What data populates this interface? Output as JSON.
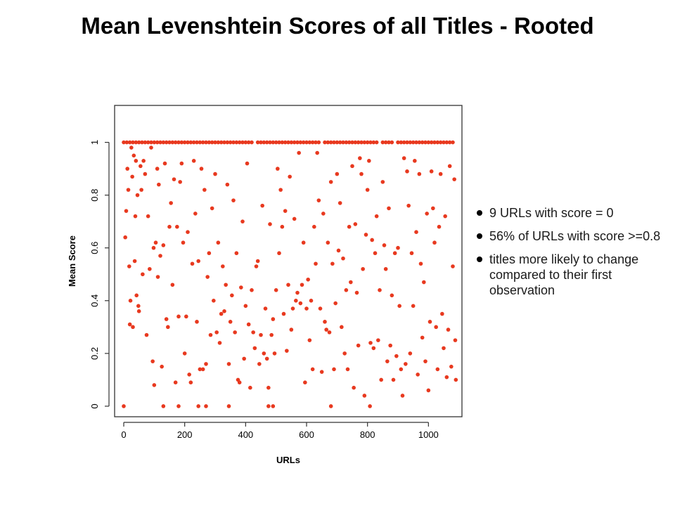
{
  "slide": {
    "title": "Mean Levenshtein Scores of all Titles - Rooted",
    "bullets": [
      "9 URLs with score = 0",
      "56% of URLs with score >=0.8",
      "titles more likely to change compared to their first observation"
    ]
  },
  "chart_data": {
    "type": "scatter",
    "xlabel": "URLs",
    "ylabel": "Mean Score",
    "xlim": [
      -30,
      1110
    ],
    "ylim": [
      -0.04,
      1.14
    ],
    "x_ticks": [
      0,
      200,
      400,
      600,
      800,
      1000
    ],
    "y_ticks": [
      0,
      0.2,
      0.4,
      0.6,
      0.8,
      1
    ],
    "x_tick_labels": [
      "0",
      "200",
      "400",
      "600",
      "800",
      "1000"
    ],
    "y_tick_labels": [
      "0",
      "0.2",
      "0.4",
      "0.6",
      "0.8",
      "1"
    ],
    "grid": false,
    "point_color": "#e8391f",
    "points_top_row": [
      0,
      10,
      20,
      30,
      40,
      50,
      60,
      70,
      80,
      90,
      100,
      110,
      120,
      130,
      140,
      150,
      160,
      170,
      180,
      190,
      200,
      210,
      220,
      230,
      240,
      250,
      260,
      270,
      280,
      290,
      300,
      310,
      320,
      330,
      340,
      350,
      360,
      370,
      380,
      390,
      400,
      410,
      420,
      440,
      450,
      460,
      470,
      480,
      490,
      500,
      510,
      520,
      530,
      540,
      550,
      560,
      570,
      580,
      590,
      600,
      610,
      620,
      630,
      640,
      660,
      670,
      680,
      690,
      700,
      710,
      720,
      730,
      740,
      750,
      760,
      770,
      780,
      790,
      800,
      810,
      820,
      830,
      850,
      860,
      870,
      880,
      900,
      910,
      920,
      930,
      940,
      950,
      960,
      970,
      980,
      990,
      1000,
      1010,
      1020,
      1030,
      1040,
      1050,
      1060,
      1070,
      1080
    ],
    "points": [
      [
        0,
        0
      ],
      [
        180,
        0
      ],
      [
        245,
        0
      ],
      [
        270,
        0
      ],
      [
        345,
        0
      ],
      [
        475,
        0
      ],
      [
        490,
        0
      ],
      [
        680,
        0
      ],
      [
        808,
        0
      ],
      [
        130,
        0
      ],
      [
        5,
        0.64
      ],
      [
        8,
        0.74
      ],
      [
        12,
        0.9
      ],
      [
        15,
        0.82
      ],
      [
        18,
        0.53
      ],
      [
        20,
        0.31
      ],
      [
        22,
        0.4
      ],
      [
        25,
        0.98
      ],
      [
        28,
        0.87
      ],
      [
        30,
        0.3
      ],
      [
        33,
        0.95
      ],
      [
        36,
        0.55
      ],
      [
        38,
        0.72
      ],
      [
        40,
        0.93
      ],
      [
        42,
        0.42
      ],
      [
        45,
        0.8
      ],
      [
        48,
        0.38
      ],
      [
        50,
        0.36
      ],
      [
        55,
        0.91
      ],
      [
        58,
        0.82
      ],
      [
        62,
        0.5
      ],
      [
        65,
        0.93
      ],
      [
        70,
        0.88
      ],
      [
        75,
        0.27
      ],
      [
        80,
        0.72
      ],
      [
        85,
        0.52
      ],
      [
        90,
        0.98
      ],
      [
        95,
        0.17
      ],
      [
        98,
        0.6
      ],
      [
        100,
        0.08
      ],
      [
        105,
        0.62
      ],
      [
        110,
        0.9
      ],
      [
        112,
        0.49
      ],
      [
        115,
        0.84
      ],
      [
        120,
        0.57
      ],
      [
        125,
        0.15
      ],
      [
        130,
        0.61
      ],
      [
        135,
        0.92
      ],
      [
        140,
        0.33
      ],
      [
        145,
        0.3
      ],
      [
        150,
        0.68
      ],
      [
        155,
        0.77
      ],
      [
        160,
        0.46
      ],
      [
        165,
        0.86
      ],
      [
        170,
        0.09
      ],
      [
        175,
        0.68
      ],
      [
        180,
        0.34
      ],
      [
        185,
        0.85
      ],
      [
        190,
        0.92
      ],
      [
        195,
        0.62
      ],
      [
        200,
        0.2
      ],
      [
        205,
        0.34
      ],
      [
        210,
        0.66
      ],
      [
        215,
        0.12
      ],
      [
        220,
        0.09
      ],
      [
        225,
        0.54
      ],
      [
        230,
        0.93
      ],
      [
        235,
        0.73
      ],
      [
        240,
        0.32
      ],
      [
        245,
        0.55
      ],
      [
        250,
        0.14
      ],
      [
        255,
        0.9
      ],
      [
        260,
        0.14
      ],
      [
        265,
        0.82
      ],
      [
        270,
        0.16
      ],
      [
        275,
        0.49
      ],
      [
        280,
        0.58
      ],
      [
        285,
        0.27
      ],
      [
        290,
        0.75
      ],
      [
        295,
        0.4
      ],
      [
        300,
        0.88
      ],
      [
        305,
        0.28
      ],
      [
        310,
        0.62
      ],
      [
        315,
        0.24
      ],
      [
        320,
        0.35
      ],
      [
        325,
        0.53
      ],
      [
        330,
        0.36
      ],
      [
        335,
        0.46
      ],
      [
        340,
        0.84
      ],
      [
        345,
        0.16
      ],
      [
        350,
        0.32
      ],
      [
        355,
        0.42
      ],
      [
        360,
        0.78
      ],
      [
        365,
        0.28
      ],
      [
        370,
        0.58
      ],
      [
        375,
        0.1
      ],
      [
        380,
        0.09
      ],
      [
        385,
        0.45
      ],
      [
        390,
        0.7
      ],
      [
        395,
        0.18
      ],
      [
        400,
        0.38
      ],
      [
        405,
        0.92
      ],
      [
        410,
        0.31
      ],
      [
        415,
        0.07
      ],
      [
        420,
        0.44
      ],
      [
        425,
        0.28
      ],
      [
        430,
        0.22
      ],
      [
        435,
        0.53
      ],
      [
        440,
        0.55
      ],
      [
        445,
        0.16
      ],
      [
        450,
        0.27
      ],
      [
        455,
        0.76
      ],
      [
        460,
        0.2
      ],
      [
        465,
        0.37
      ],
      [
        470,
        0.18
      ],
      [
        475,
        0.07
      ],
      [
        480,
        0.69
      ],
      [
        485,
        0.27
      ],
      [
        490,
        0.33
      ],
      [
        495,
        0.2
      ],
      [
        500,
        0.44
      ],
      [
        505,
        0.9
      ],
      [
        510,
        0.58
      ],
      [
        515,
        0.82
      ],
      [
        520,
        0.68
      ],
      [
        525,
        0.35
      ],
      [
        530,
        0.74
      ],
      [
        535,
        0.21
      ],
      [
        540,
        0.46
      ],
      [
        545,
        0.87
      ],
      [
        550,
        0.29
      ],
      [
        555,
        0.37
      ],
      [
        560,
        0.71
      ],
      [
        565,
        0.4
      ],
      [
        570,
        0.43
      ],
      [
        575,
        0.96
      ],
      [
        580,
        0.39
      ],
      [
        585,
        0.46
      ],
      [
        590,
        0.62
      ],
      [
        595,
        0.09
      ],
      [
        600,
        0.37
      ],
      [
        605,
        0.48
      ],
      [
        610,
        0.25
      ],
      [
        615,
        0.4
      ],
      [
        620,
        0.14
      ],
      [
        625,
        0.68
      ],
      [
        630,
        0.54
      ],
      [
        635,
        0.96
      ],
      [
        640,
        0.78
      ],
      [
        645,
        0.37
      ],
      [
        650,
        0.13
      ],
      [
        655,
        0.73
      ],
      [
        660,
        0.32
      ],
      [
        665,
        0.29
      ],
      [
        670,
        0.62
      ],
      [
        675,
        0.28
      ],
      [
        680,
        0.85
      ],
      [
        685,
        0.54
      ],
      [
        690,
        0.14
      ],
      [
        695,
        0.39
      ],
      [
        700,
        0.88
      ],
      [
        705,
        0.59
      ],
      [
        710,
        0.77
      ],
      [
        715,
        0.3
      ],
      [
        720,
        0.56
      ],
      [
        725,
        0.2
      ],
      [
        730,
        0.44
      ],
      [
        735,
        0.14
      ],
      [
        740,
        0.68
      ],
      [
        745,
        0.47
      ],
      [
        750,
        0.91
      ],
      [
        755,
        0.07
      ],
      [
        760,
        0.69
      ],
      [
        765,
        0.43
      ],
      [
        770,
        0.23
      ],
      [
        775,
        0.94
      ],
      [
        780,
        0.88
      ],
      [
        785,
        0.52
      ],
      [
        790,
        0.04
      ],
      [
        795,
        0.65
      ],
      [
        800,
        0.82
      ],
      [
        805,
        0.93
      ],
      [
        810,
        0.24
      ],
      [
        815,
        0.63
      ],
      [
        820,
        0.22
      ],
      [
        825,
        0.58
      ],
      [
        830,
        0.72
      ],
      [
        835,
        0.25
      ],
      [
        840,
        0.44
      ],
      [
        845,
        0.1
      ],
      [
        850,
        0.85
      ],
      [
        855,
        0.61
      ],
      [
        860,
        0.52
      ],
      [
        865,
        0.17
      ],
      [
        870,
        0.75
      ],
      [
        875,
        0.23
      ],
      [
        880,
        0.42
      ],
      [
        885,
        0.1
      ],
      [
        890,
        0.58
      ],
      [
        895,
        0.19
      ],
      [
        900,
        0.6
      ],
      [
        905,
        0.38
      ],
      [
        910,
        0.14
      ],
      [
        915,
        0.04
      ],
      [
        920,
        0.94
      ],
      [
        925,
        0.16
      ],
      [
        930,
        0.89
      ],
      [
        935,
        0.76
      ],
      [
        940,
        0.2
      ],
      [
        945,
        0.58
      ],
      [
        950,
        0.38
      ],
      [
        955,
        0.93
      ],
      [
        960,
        0.66
      ],
      [
        965,
        0.12
      ],
      [
        970,
        0.88
      ],
      [
        975,
        0.54
      ],
      [
        980,
        0.26
      ],
      [
        985,
        0.47
      ],
      [
        990,
        0.17
      ],
      [
        995,
        0.73
      ],
      [
        1000,
        0.06
      ],
      [
        1005,
        0.32
      ],
      [
        1010,
        0.89
      ],
      [
        1015,
        0.75
      ],
      [
        1020,
        0.62
      ],
      [
        1025,
        0.3
      ],
      [
        1030,
        0.14
      ],
      [
        1035,
        0.68
      ],
      [
        1040,
        0.88
      ],
      [
        1045,
        0.35
      ],
      [
        1050,
        0.22
      ],
      [
        1055,
        0.72
      ],
      [
        1060,
        0.11
      ],
      [
        1065,
        0.29
      ],
      [
        1070,
        0.91
      ],
      [
        1075,
        0.15
      ],
      [
        1080,
        0.53
      ],
      [
        1085,
        0.86
      ],
      [
        1088,
        0.25
      ],
      [
        1090,
        0.1
      ]
    ]
  }
}
